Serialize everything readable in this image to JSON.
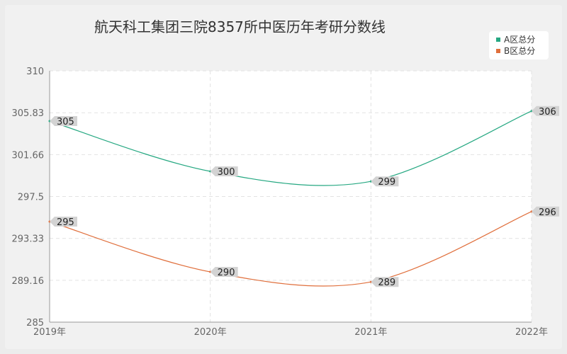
{
  "chart_data": {
    "type": "line",
    "title": "航天科工集团三院8357所中医历年考研分数线",
    "x": [
      "2019年",
      "2020年",
      "2021年",
      "2022年"
    ],
    "ylim": [
      285,
      310
    ],
    "yticks": [
      "285",
      "289.16",
      "293.33",
      "297.5",
      "301.66",
      "305.83",
      "310"
    ],
    "grid": true,
    "legend_position": "top-right",
    "series": [
      {
        "name": "A区总分",
        "values": [
          305,
          300,
          299,
          306
        ],
        "color": "#26a882"
      },
      {
        "name": "B区总分",
        "values": [
          295,
          290,
          289,
          296
        ],
        "color": "#e06f3c"
      }
    ]
  }
}
